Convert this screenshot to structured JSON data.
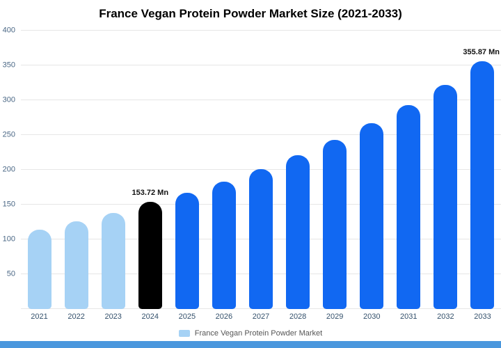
{
  "title": "France Vegan Protein Powder Market Size (2021-2033)",
  "legend": {
    "label": "France Vegan Protein Powder Market"
  },
  "colors": {
    "bar_light": "#a6d2f5",
    "bar_primary": "#1168f2",
    "bar_highlight": "#000000",
    "legend_swatch": "#a6d2f5",
    "footer_strip": "#4a97dd",
    "grid": "#e6e6e6",
    "y_label": "#4a6785",
    "x_label": "#33506b",
    "value_label": "#111111"
  },
  "chart_data": {
    "type": "bar",
    "title": "France Vegan Protein Powder Market Size (2021-2033)",
    "categories": [
      "2021",
      "2022",
      "2023",
      "2024",
      "2025",
      "2026",
      "2027",
      "2028",
      "2029",
      "2030",
      "2031",
      "2032",
      "2033"
    ],
    "values": [
      114,
      126,
      138,
      153.72,
      167,
      183,
      201,
      221,
      243,
      267,
      293,
      322,
      355.87
    ],
    "bar_styles": [
      "light",
      "light",
      "light",
      "highlight",
      "primary",
      "primary",
      "primary",
      "primary",
      "primary",
      "primary",
      "primary",
      "primary",
      "primary"
    ],
    "annotations": [
      {
        "category": "2024",
        "text": "153.72 Mn"
      },
      {
        "category": "2033",
        "text": "355.87 Mn"
      }
    ],
    "xlabel": "",
    "ylabel": "",
    "ylim": [
      0,
      400
    ],
    "y_ticks": [
      400,
      350,
      300,
      250,
      200,
      150,
      100,
      50
    ],
    "grid": true,
    "legend_position": "bottom",
    "legend_entries": [
      "France Vegan Protein Powder Market"
    ]
  }
}
